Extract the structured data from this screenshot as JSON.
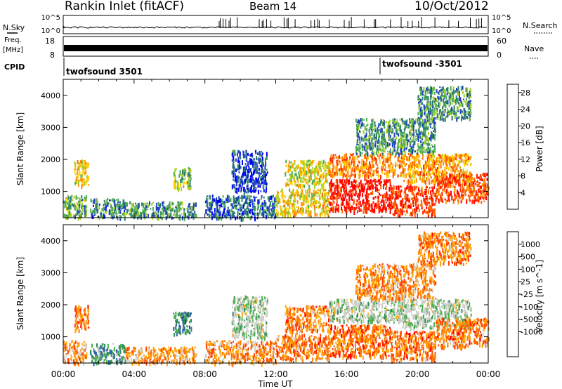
{
  "header": {
    "station": "Rankin Inlet (fitACF)",
    "beam": "Beam 14",
    "date": "10/Oct/2012"
  },
  "panels": {
    "nsky": {
      "label": "N.Sky",
      "ticks": [
        "10^5",
        "10^0"
      ]
    },
    "nsearch": {
      "label": "N.Search",
      "ticks": [
        "10^5",
        "10^0"
      ]
    },
    "freq": {
      "label_top": "Freq.",
      "label_bottom": "[MHz]",
      "ticks": [
        "18",
        "8"
      ]
    },
    "nave": {
      "label": "Nave",
      "ticks": [
        "60",
        "0"
      ]
    },
    "cpid": {
      "label": "CPID",
      "entries": [
        "twofsound 3501",
        "twofsound -3501"
      ]
    }
  },
  "colors": {
    "power": [
      "#0000ff",
      "#1f3fbf",
      "#2e7d6e",
      "#4caf50",
      "#a6d12a",
      "#ffd000",
      "#ff9900",
      "#ff6600",
      "#ff2a00",
      "#ff0000"
    ],
    "velocity": [
      "#1e3cb4",
      "#2e5fa8",
      "#2e8b57",
      "#4caf50",
      "#c8c8c8",
      "#d2d2c8",
      "#ffa500",
      "#ff7f00",
      "#ff4000",
      "#ff0000"
    ]
  },
  "chart_data": [
    {
      "type": "heatmap",
      "name": "power-panel",
      "xlabel": "",
      "ylabel": "Slant Range [km]",
      "xlim": [
        0,
        24
      ],
      "ylim": [
        180,
        4500
      ],
      "yticks": [
        "1000",
        "2000",
        "3000",
        "4000"
      ],
      "colorbar": {
        "label": "Power [dB]",
        "ticks": [
          "4",
          "8",
          "12",
          "16",
          "20",
          "24",
          "28"
        ],
        "range": [
          0,
          30
        ]
      },
      "regions": [
        {
          "t": [
            0.0,
            1.3
          ],
          "r": [
            200,
            900
          ],
          "level": 0.35
        },
        {
          "t": [
            0.6,
            1.4
          ],
          "r": [
            1200,
            2000
          ],
          "level": 0.55
        },
        {
          "t": [
            1.5,
            3.5
          ],
          "r": [
            200,
            800
          ],
          "level": 0.25
        },
        {
          "t": [
            3.5,
            7.5
          ],
          "r": [
            200,
            700
          ],
          "level": 0.3
        },
        {
          "t": [
            6.2,
            7.2
          ],
          "r": [
            1100,
            1800
          ],
          "level": 0.4
        },
        {
          "t": [
            8.0,
            12.0
          ],
          "r": [
            200,
            900
          ],
          "level": 0.2
        },
        {
          "t": [
            9.5,
            11.5
          ],
          "r": [
            1000,
            2300
          ],
          "level": 0.15
        },
        {
          "t": [
            12.0,
            15.0
          ],
          "r": [
            300,
            1100
          ],
          "level": 0.55
        },
        {
          "t": [
            12.5,
            15.0
          ],
          "r": [
            1200,
            2000
          ],
          "level": 0.5
        },
        {
          "t": [
            15.0,
            18.5
          ],
          "r": [
            400,
            1400
          ],
          "level": 0.92
        },
        {
          "t": [
            15.0,
            19.0
          ],
          "r": [
            1500,
            2200
          ],
          "level": 0.7
        },
        {
          "t": [
            16.5,
            21.0
          ],
          "r": [
            2200,
            3300
          ],
          "level": 0.3
        },
        {
          "t": [
            18.5,
            21.0
          ],
          "r": [
            300,
            1200
          ],
          "level": 0.85
        },
        {
          "t": [
            19.0,
            23.0
          ],
          "r": [
            1300,
            2200
          ],
          "level": 0.65
        },
        {
          "t": [
            21.0,
            24.0
          ],
          "r": [
            700,
            1600
          ],
          "level": 0.8
        },
        {
          "t": [
            20.0,
            23.0
          ],
          "r": [
            3300,
            4300
          ],
          "level": 0.3
        }
      ]
    },
    {
      "type": "heatmap",
      "name": "velocity-panel",
      "xlabel": "Time UT",
      "ylabel": "Slant Range [km]",
      "xlim": [
        0,
        24
      ],
      "ylim": [
        180,
        4500
      ],
      "xticks": [
        "00:00",
        "04:00",
        "08:00",
        "12:00",
        "16:00",
        "20:00",
        "00:00"
      ],
      "yticks": [
        "1000",
        "2000",
        "3000",
        "4000"
      ],
      "colorbar": {
        "label": "Velocity [m s^-1]",
        "ticks": [
          "1000",
          "500",
          "100",
          "25",
          "-25",
          "-100",
          "-500",
          "-1000"
        ],
        "range": [
          -1500,
          1500
        ]
      },
      "regions": [
        {
          "t": [
            0.0,
            1.3
          ],
          "r": [
            200,
            900
          ],
          "level": 0.7
        },
        {
          "t": [
            0.6,
            1.4
          ],
          "r": [
            1200,
            2000
          ],
          "level": 0.75
        },
        {
          "t": [
            1.5,
            3.5
          ],
          "r": [
            200,
            800
          ],
          "level": 0.3
        },
        {
          "t": [
            3.5,
            7.5
          ],
          "r": [
            200,
            700
          ],
          "level": 0.72
        },
        {
          "t": [
            6.2,
            7.2
          ],
          "r": [
            1100,
            1800
          ],
          "level": 0.25
        },
        {
          "t": [
            8.0,
            12.0
          ],
          "r": [
            200,
            900
          ],
          "level": 0.7
        },
        {
          "t": [
            9.5,
            11.5
          ],
          "r": [
            1000,
            2300
          ],
          "level": 0.45
        },
        {
          "t": [
            12.0,
            15.0
          ],
          "r": [
            300,
            1100
          ],
          "level": 0.75
        },
        {
          "t": [
            12.5,
            15.0
          ],
          "r": [
            1200,
            2000
          ],
          "level": 0.74
        },
        {
          "t": [
            15.0,
            18.5
          ],
          "r": [
            400,
            1400
          ],
          "level": 0.78
        },
        {
          "t": [
            15.0,
            19.0
          ],
          "r": [
            1500,
            2200
          ],
          "level": 0.45
        },
        {
          "t": [
            16.5,
            21.0
          ],
          "r": [
            2200,
            3300
          ],
          "level": 0.72
        },
        {
          "t": [
            18.5,
            21.0
          ],
          "r": [
            300,
            1200
          ],
          "level": 0.76
        },
        {
          "t": [
            19.0,
            23.0
          ],
          "r": [
            1300,
            2200
          ],
          "level": 0.45
        },
        {
          "t": [
            21.0,
            24.0
          ],
          "r": [
            700,
            1600
          ],
          "level": 0.75
        },
        {
          "t": [
            20.0,
            23.0
          ],
          "r": [
            3300,
            4300
          ],
          "level": 0.74
        }
      ]
    }
  ]
}
